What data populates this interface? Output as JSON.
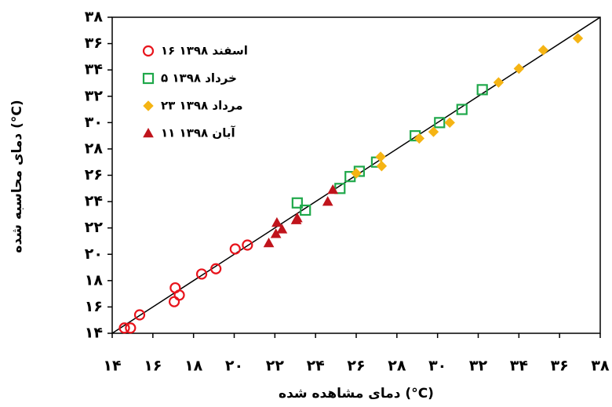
{
  "chart_data": {
    "type": "scatter",
    "x_label": "دمای مشاهده شده (°C)",
    "y_label": "دمای محاسبه شده (°C)",
    "xlim": [
      14,
      38
    ],
    "ylim": [
      14,
      38
    ],
    "xticks": [
      {
        "value": 14,
        "label": "۱۴"
      },
      {
        "value": 16,
        "label": "۱۶"
      },
      {
        "value": 18,
        "label": "۱۸"
      },
      {
        "value": 20,
        "label": "۲۰"
      },
      {
        "value": 22,
        "label": "۲۲"
      },
      {
        "value": 24,
        "label": "۲۴"
      },
      {
        "value": 26,
        "label": "۲۶"
      },
      {
        "value": 28,
        "label": "۲۸"
      },
      {
        "value": 30,
        "label": "۳۰"
      },
      {
        "value": 32,
        "label": "۳۲"
      },
      {
        "value": 34,
        "label": "۳۴"
      },
      {
        "value": 36,
        "label": "۳۶"
      },
      {
        "value": 38,
        "label": "۳۸"
      }
    ],
    "yticks": [
      {
        "value": 14,
        "label": "۱۴"
      },
      {
        "value": 16,
        "label": "۱۶"
      },
      {
        "value": 18,
        "label": "۱۸"
      },
      {
        "value": 20,
        "label": "۲۰"
      },
      {
        "value": 22,
        "label": "۲۲"
      },
      {
        "value": 24,
        "label": "۲۴"
      },
      {
        "value": 26,
        "label": "۲۶"
      },
      {
        "value": 28,
        "label": "۲۸"
      },
      {
        "value": 30,
        "label": "۳۰"
      },
      {
        "value": 32,
        "label": "۳۲"
      },
      {
        "value": 34,
        "label": "۳۴"
      },
      {
        "value": 36,
        "label": "۳۶"
      },
      {
        "value": 38,
        "label": "۳۸"
      }
    ],
    "legend": "upper left",
    "series": [
      {
        "name": "۱۶ اسفند ۱۳۹۸",
        "color": "#e8141c",
        "marker": "circle",
        "x": [
          14.6,
          14.9,
          15.35,
          17.05,
          17.1,
          17.3,
          18.4,
          19.1,
          20.05,
          20.65
        ],
        "values": [
          14.4,
          14.4,
          15.4,
          16.4,
          17.45,
          16.9,
          18.5,
          18.9,
          20.4,
          20.7
        ]
      },
      {
        "name": "۵ خرداد ۱۳۹۸",
        "color": "#1fa84a",
        "marker": "square",
        "x": [
          23.1,
          23.5,
          25.2,
          25.7,
          26.15,
          27.0,
          28.9,
          30.1,
          31.2,
          32.2
        ],
        "values": [
          23.9,
          23.35,
          25.0,
          25.9,
          26.3,
          27.0,
          29.0,
          30.0,
          31.0,
          32.5
        ]
      },
      {
        "name": "۲۳ مرداد ۱۳۹۸",
        "color": "#f5b414",
        "marker": "diamond",
        "x": [
          26.0,
          27.2,
          27.25,
          29.1,
          29.8,
          30.6,
          33.0,
          34.0,
          35.2,
          36.9
        ],
        "values": [
          26.15,
          27.4,
          26.7,
          28.8,
          29.3,
          30.0,
          33.05,
          34.1,
          35.5,
          36.4
        ]
      },
      {
        "name": "۱۱ آبان ۱۳۹۸",
        "color": "#c0141c",
        "marker": "triangle",
        "x": [
          21.7,
          22.05,
          22.1,
          22.35,
          23.05,
          23.1,
          24.6,
          24.85
        ],
        "values": [
          20.85,
          21.55,
          22.4,
          21.9,
          22.6,
          22.75,
          24.0,
          24.9
        ]
      }
    ]
  }
}
